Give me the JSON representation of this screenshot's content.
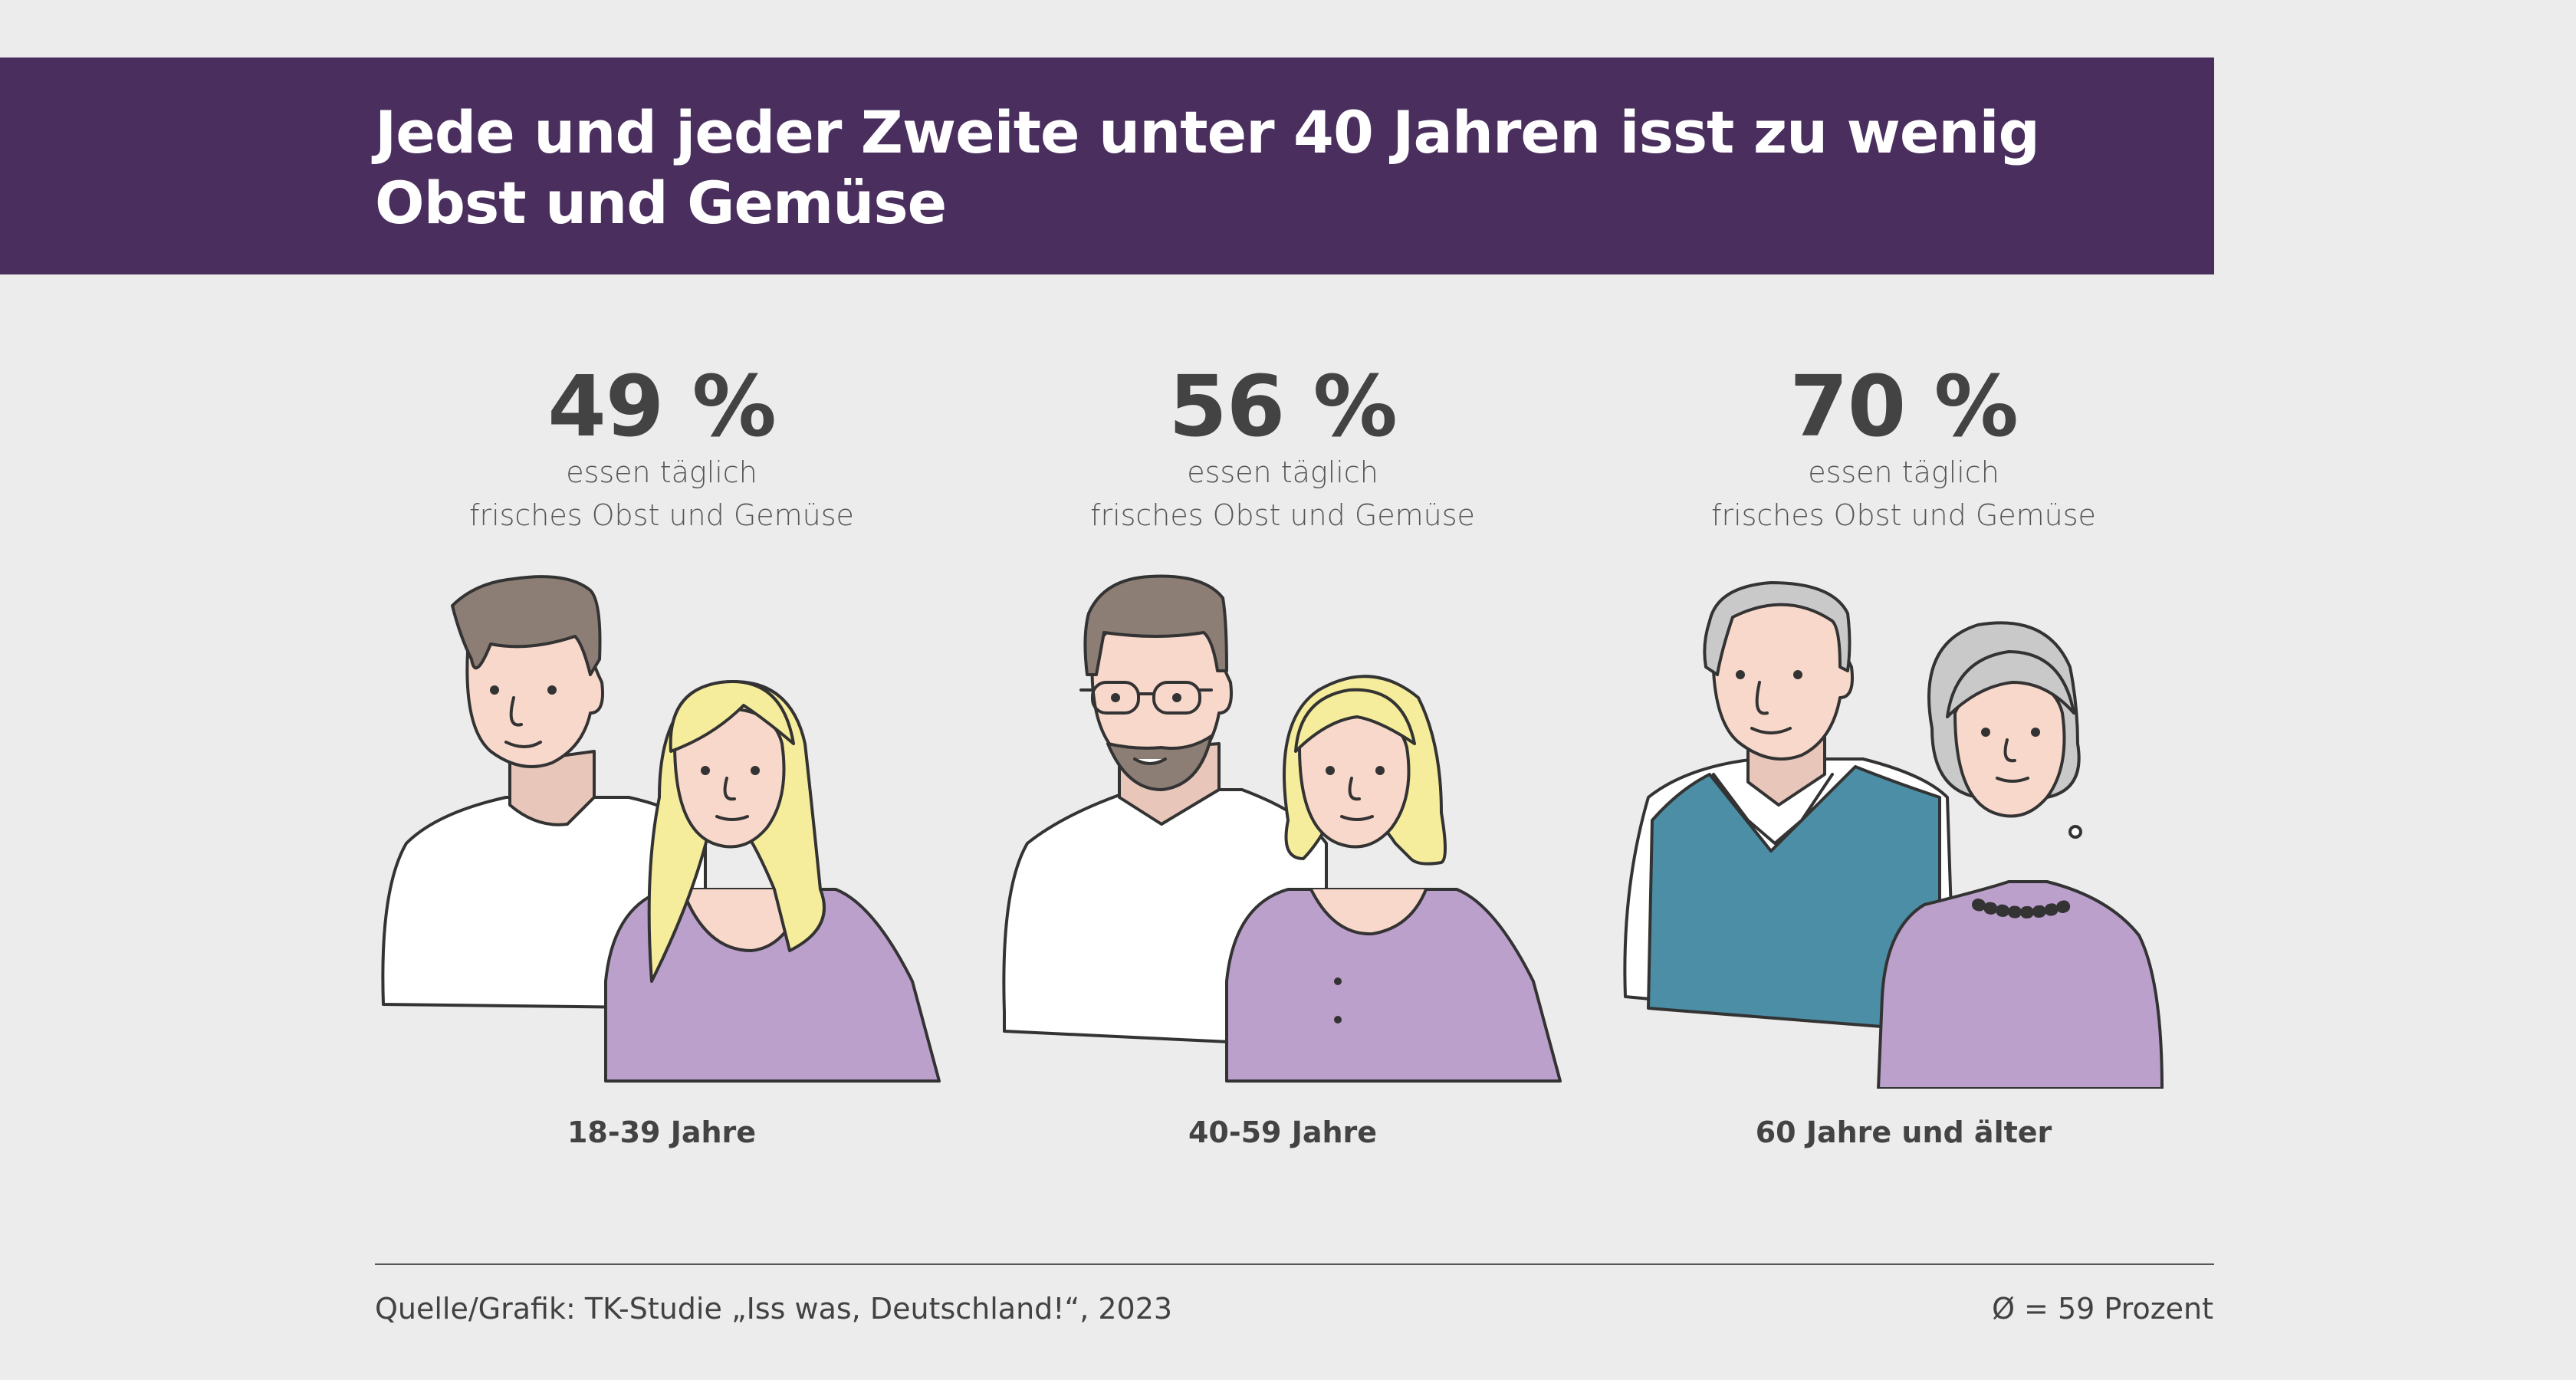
{
  "header": {
    "title_line1": "Jede und jeder Zweite unter 40 Jahren isst zu wenig",
    "title_line2": "Obst und Gemüse"
  },
  "chart_data": {
    "type": "pictogram",
    "title": "Jede und jeder Zweite unter 40 Jahren isst zu wenig Obst und Gemüse",
    "unit": "%",
    "categories": [
      "18-39 Jahre",
      "40-59 Jahre",
      "60 Jahre und älter"
    ],
    "values": [
      49,
      56,
      70
    ],
    "value_labels": [
      "49 %",
      "56 %",
      "70 %"
    ],
    "description_line1": "essen täglich",
    "description_line2": "frisches Obst und Gemüse",
    "average_label": "Ø = 59 Prozent",
    "average": 59
  },
  "footer": {
    "source": "Quelle/Grafik: TK-Studie „Iss was, Deutschland!“, 2023",
    "average": "Ø = 59 Prozent"
  },
  "colors": {
    "banner": "#4a2e5e",
    "background": "#ececec",
    "text": "#424242",
    "purple_shirt": "#bca0cc",
    "blond_hair": "#f6ed9c",
    "brown_hair": "#8c7d75",
    "grey_hair": "#c9c9c9",
    "teal_vest": "#4b8ea6",
    "skin": "#f9d8cc"
  }
}
